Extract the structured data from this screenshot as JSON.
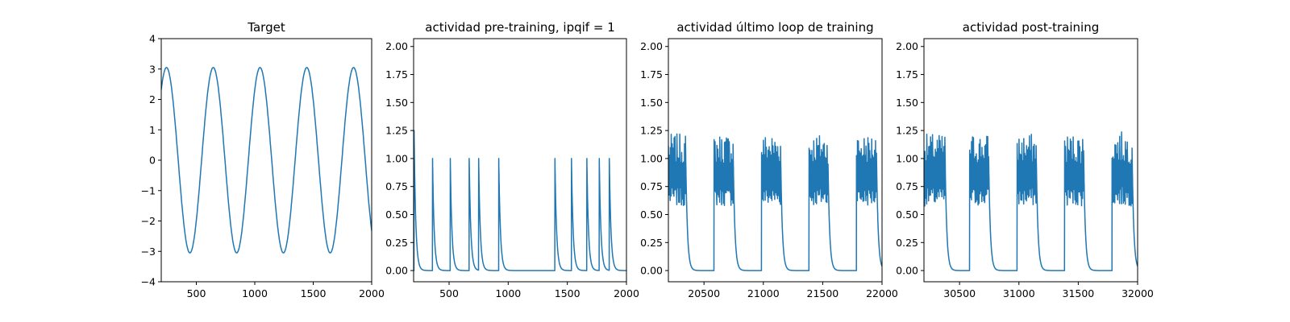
{
  "chart_data": [
    {
      "type": "line",
      "title": "Target",
      "xlim": [
        200,
        2000
      ],
      "ylim": [
        -4,
        4
      ],
      "xticks": [
        500,
        1000,
        1500,
        2000
      ],
      "yticks": [
        -4,
        -3,
        -2,
        -1,
        0,
        1,
        2,
        3,
        4
      ],
      "xticklabels": [
        "500",
        "1000",
        "1500",
        "2000"
      ],
      "yticklabels": [
        "−4",
        "−3",
        "−2",
        "−1",
        "0",
        "1",
        "2",
        "3",
        "4"
      ],
      "series": [
        {
          "kind": "sine",
          "amplitude": 3.05,
          "period": 400,
          "peak_x": [
            245,
            645,
            1045,
            1445,
            1845
          ],
          "trough_x": [
            445,
            845,
            1245,
            1645
          ],
          "start": [
            200,
            2.35
          ],
          "end": [
            2000,
            -2.2
          ]
        }
      ],
      "color": "#1f77b4"
    },
    {
      "type": "line",
      "title": "actividad pre-training, ipqif = 1",
      "xlim": [
        200,
        2000
      ],
      "ylim": [
        -0.1,
        2.07
      ],
      "xticks": [
        500,
        1000,
        1500,
        2000
      ],
      "yticks": [
        0.0,
        0.25,
        0.5,
        0.75,
        1.0,
        1.25,
        1.5,
        1.75,
        2.0
      ],
      "xticklabels": [
        "500",
        "1000",
        "1500",
        "2000"
      ],
      "yticklabels": [
        "0.00",
        "0.25",
        "0.50",
        "0.75",
        "1.00",
        "1.25",
        "1.50",
        "1.75",
        "2.00"
      ],
      "series": [
        {
          "kind": "spikes",
          "spikes": [
            [
              204,
              1.25
            ],
            [
              360,
              1.0
            ],
            [
              510,
              1.0
            ],
            [
              670,
              1.0
            ],
            [
              750,
              1.0
            ],
            [
              920,
              1.0
            ],
            [
              1395,
              1.0
            ],
            [
              1535,
              1.0
            ],
            [
              1665,
              1.0
            ],
            [
              1770,
              1.0
            ],
            [
              1855,
              1.0
            ]
          ],
          "decay": 14
        }
      ],
      "color": "#1f77b4"
    },
    {
      "type": "line",
      "title": "actividad último loop de training",
      "xlim": [
        20200,
        22000
      ],
      "ylim": [
        -0.1,
        2.07
      ],
      "xticks": [
        20500,
        21000,
        21500,
        22000
      ],
      "yticks": [
        0.0,
        0.25,
        0.5,
        0.75,
        1.0,
        1.25,
        1.5,
        1.75,
        2.0
      ],
      "xticklabels": [
        "20500",
        "21000",
        "21500",
        "22000"
      ],
      "yticklabels": [
        "0.00",
        "0.25",
        "0.50",
        "0.75",
        "1.00",
        "1.25",
        "1.50",
        "1.75",
        "2.00"
      ],
      "series": [
        {
          "kind": "bursts",
          "bursts": [
            [
              20200,
              20350,
              1.22
            ],
            [
              20585,
              20750,
              1.22
            ],
            [
              20985,
              21150,
              1.22
            ],
            [
              21385,
              21550,
              1.22
            ],
            [
              21785,
              21955,
              1.22
            ]
          ],
          "decay": 14
        }
      ],
      "color": "#1f77b4"
    },
    {
      "type": "line",
      "title": "actividad post-training",
      "xlim": [
        30200,
        32000
      ],
      "ylim": [
        -0.1,
        2.07
      ],
      "xticks": [
        30500,
        31000,
        31500,
        32000
      ],
      "yticks": [
        0.0,
        0.25,
        0.5,
        0.75,
        1.0,
        1.25,
        1.5,
        1.75,
        2.0
      ],
      "xticklabels": [
        "30500",
        "31000",
        "31500",
        "32000"
      ],
      "yticklabels": [
        "0.00",
        "0.25",
        "0.50",
        "0.75",
        "1.00",
        "1.25",
        "1.50",
        "1.75",
        "2.00"
      ],
      "series": [
        {
          "kind": "bursts",
          "bursts": [
            [
              30200,
              30380,
              1.22
            ],
            [
              30585,
              30750,
              1.22
            ],
            [
              30985,
              31150,
              1.22
            ],
            [
              31385,
              31550,
              1.22
            ],
            [
              31785,
              31955,
              1.24
            ]
          ],
          "decay": 14
        }
      ],
      "color": "#1f77b4"
    }
  ]
}
